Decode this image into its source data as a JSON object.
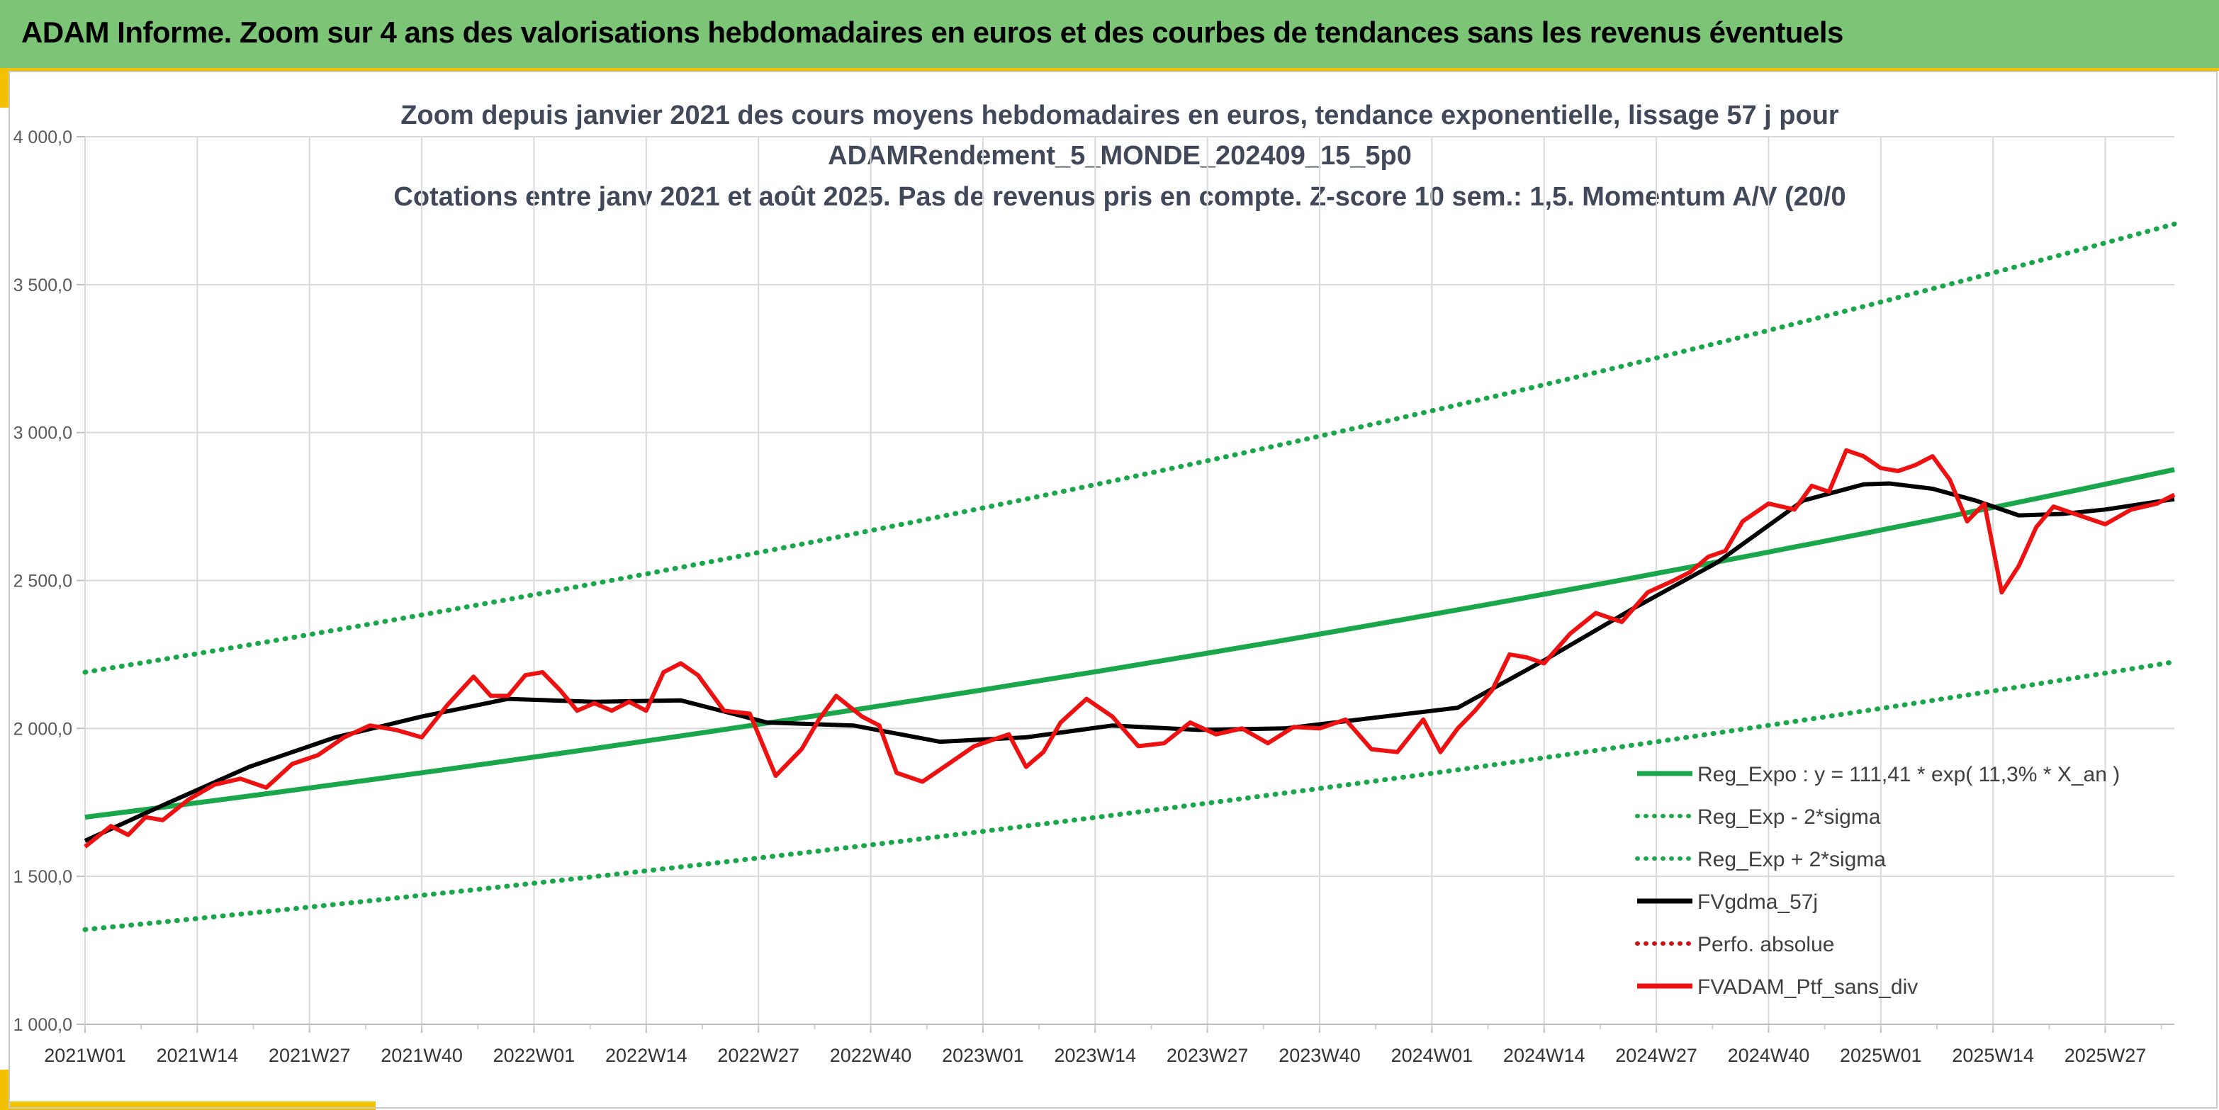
{
  "banner": {
    "title": "ADAM Informe. Zoom sur 4 ans des valorisations hebdomadaires en euros et des courbes de tendances sans les revenus éventuels"
  },
  "colors": {
    "banner_bg": "#7cc576",
    "accent": "#f2c200",
    "regression": "#1aa64b",
    "band": "#1aa64b",
    "moving_avg": "#000000",
    "portfolio": "#ee1111",
    "perfo": "#d01010"
  },
  "chart_data": {
    "type": "line",
    "title_lines": [
      "Zoom depuis janvier 2021 des cours moyens hebdomadaires en euros, tendance exponentielle, lissage 57 j pour",
      "ADAMRendement_5_MONDE_202409_15_5p0",
      "Cotations entre janv 2021 et août 2025. Pas de revenus pris en compte. Z-score 10 sem.: 1,5. Momentum A/V (20/0"
    ],
    "x_axis": {
      "tick_labels": [
        "2021W01",
        "2021W14",
        "2021W27",
        "2021W40",
        "2022W01",
        "2022W14",
        "2022W27",
        "2022W40",
        "2023W01",
        "2023W14",
        "2023W27",
        "2023W40",
        "2024W01",
        "2024W14",
        "2024W27",
        "2024W40",
        "2025W01",
        "2025W14",
        "2025W27"
      ],
      "week_start": 1,
      "week_end": 243,
      "tick_step_weeks": 13
    },
    "y_axis": {
      "min": 1000,
      "max": 4000,
      "step": 500,
      "tick_labels": [
        "1 000,0",
        "1 500,0",
        "2 000,0",
        "2 500,0",
        "3 000,0",
        "3 500,0",
        "4 000,0"
      ]
    },
    "grid": true,
    "legend_position": "bottom-right",
    "legend": [
      {
        "label": "Reg_Expo : y = 111,41 * exp( 11,3% *  X_an )",
        "style": "solid-green"
      },
      {
        "label": "Reg_Exp - 2*sigma",
        "style": "dotted-green"
      },
      {
        "label": "Reg_Exp + 2*sigma",
        "style": "dotted-green"
      },
      {
        "label": "FVgdma_57j",
        "style": "solid-black"
      },
      {
        "label": "Perfo. absolue",
        "style": "dotted-red"
      },
      {
        "label": "FVADAM_Ptf_sans_div",
        "style": "solid-red"
      }
    ],
    "series": [
      {
        "name": "Reg_Expo : y = 111,41 * exp( 11,3% *  X_an )",
        "x": [
          1,
          243
        ],
        "y": [
          1700,
          2875
        ],
        "scale": "exponential"
      },
      {
        "name": "Reg_Exp - 2*sigma",
        "x": [
          1,
          243
        ],
        "y": [
          1320,
          2225
        ],
        "scale": "exponential"
      },
      {
        "name": "Reg_Exp + 2*sigma",
        "x": [
          1,
          243
        ],
        "y": [
          2190,
          3705
        ],
        "scale": "exponential"
      },
      {
        "name": "FVgdma_57j",
        "x": [
          1,
          10,
          20,
          30,
          40,
          50,
          55,
          60,
          70,
          80,
          90,
          100,
          110,
          120,
          130,
          140,
          150,
          160,
          170,
          180,
          190,
          200,
          207,
          210,
          215,
          220,
          225,
          230,
          235,
          243
        ],
        "y": [
          1620,
          1740,
          1870,
          1970,
          2040,
          2100,
          2095,
          2090,
          2095,
          2020,
          2010,
          1955,
          1970,
          2010,
          1995,
          2000,
          2035,
          2070,
          2230,
          2400,
          2560,
          2770,
          2825,
          2828,
          2810,
          2770,
          2720,
          2725,
          2740,
          2775
        ]
      },
      {
        "name": "FVADAM_Ptf_sans_div",
        "x": [
          1,
          4,
          6,
          8,
          10,
          13,
          16,
          19,
          22,
          25,
          28,
          31,
          34,
          37,
          40,
          43,
          46,
          48,
          50,
          52,
          54,
          56,
          58,
          60,
          62,
          64,
          66,
          68,
          70,
          72,
          75,
          78,
          81,
          84,
          86,
          88,
          91,
          93,
          95,
          98,
          101,
          104,
          106,
          108,
          110,
          112,
          114,
          117,
          120,
          123,
          126,
          129,
          132,
          135,
          138,
          141,
          144,
          147,
          150,
          153,
          156,
          158,
          160,
          162,
          164,
          166,
          168,
          170,
          173,
          176,
          179,
          182,
          185,
          187,
          189,
          191,
          193,
          196,
          199,
          201,
          203,
          205,
          207,
          209,
          211,
          213,
          215,
          217,
          219,
          221,
          223,
          225,
          227,
          229,
          232,
          235,
          238,
          241,
          243
        ],
        "y": [
          1600,
          1670,
          1640,
          1700,
          1690,
          1760,
          1810,
          1830,
          1800,
          1880,
          1910,
          1970,
          2010,
          1995,
          1970,
          2080,
          2175,
          2110,
          2110,
          2180,
          2190,
          2130,
          2060,
          2085,
          2060,
          2090,
          2060,
          2190,
          2220,
          2180,
          2060,
          2050,
          1840,
          1930,
          2030,
          2110,
          2040,
          2010,
          1850,
          1820,
          1880,
          1940,
          1960,
          1980,
          1870,
          1920,
          2020,
          2100,
          2040,
          1940,
          1950,
          2020,
          1980,
          2000,
          1950,
          2005,
          2000,
          2030,
          1930,
          1920,
          2030,
          1920,
          2000,
          2060,
          2130,
          2250,
          2240,
          2220,
          2320,
          2390,
          2360,
          2460,
          2500,
          2530,
          2580,
          2600,
          2700,
          2760,
          2740,
          2820,
          2800,
          2940,
          2920,
          2880,
          2870,
          2890,
          2920,
          2840,
          2700,
          2760,
          2460,
          2550,
          2680,
          2750,
          2720,
          2690,
          2740,
          2760,
          2790
        ]
      }
    ]
  }
}
